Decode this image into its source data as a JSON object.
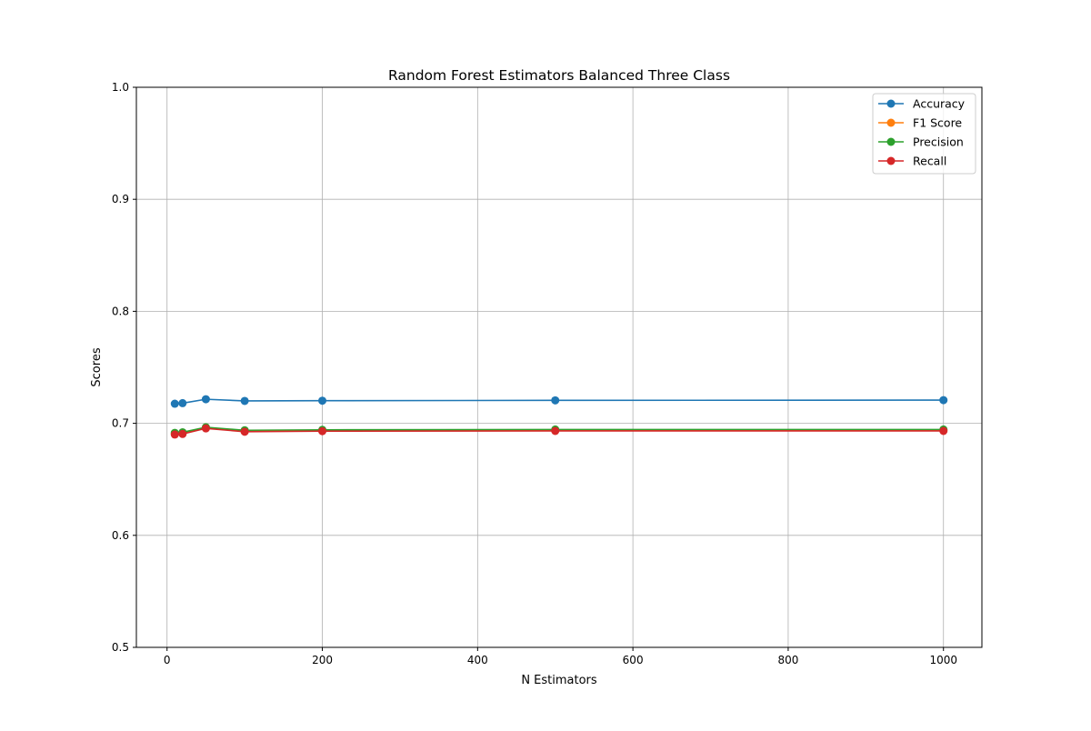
{
  "chart_data": {
    "type": "line",
    "title": "Random Forest Estimators Balanced Three Class",
    "xlabel": "N Estimators",
    "ylabel": "Scores",
    "x": [
      10,
      20,
      50,
      100,
      200,
      500,
      1000
    ],
    "xlim": [
      -39.5,
      1049.5
    ],
    "ylim": [
      0.5,
      1.0
    ],
    "xticks": [
      0,
      200,
      400,
      600,
      800,
      1000
    ],
    "xtick_labels": [
      "0",
      "200",
      "400",
      "600",
      "800",
      "1000"
    ],
    "yticks": [
      0.5,
      0.6,
      0.7,
      0.8,
      0.9,
      1.0
    ],
    "ytick_labels": [
      "0.5",
      "0.6",
      "0.7",
      "0.8",
      "0.9",
      "1.0"
    ],
    "grid": true,
    "legend_position": "top-right",
    "series": [
      {
        "name": "Accuracy",
        "color": "#1f77b4",
        "values": [
          0.7175,
          0.718,
          0.7215,
          0.72,
          0.7202,
          0.7205,
          0.7207
        ]
      },
      {
        "name": "F1 Score",
        "color": "#ff7f0e",
        "values": [
          0.6905,
          0.691,
          0.696,
          0.693,
          0.6935,
          0.6938,
          0.6938
        ]
      },
      {
        "name": "Precision",
        "color": "#2ca02c",
        "values": [
          0.6915,
          0.692,
          0.6965,
          0.6938,
          0.6942,
          0.6945,
          0.6945
        ]
      },
      {
        "name": "Recall",
        "color": "#d62728",
        "values": [
          0.69,
          0.6905,
          0.6955,
          0.6925,
          0.693,
          0.6932,
          0.6932
        ]
      }
    ]
  }
}
